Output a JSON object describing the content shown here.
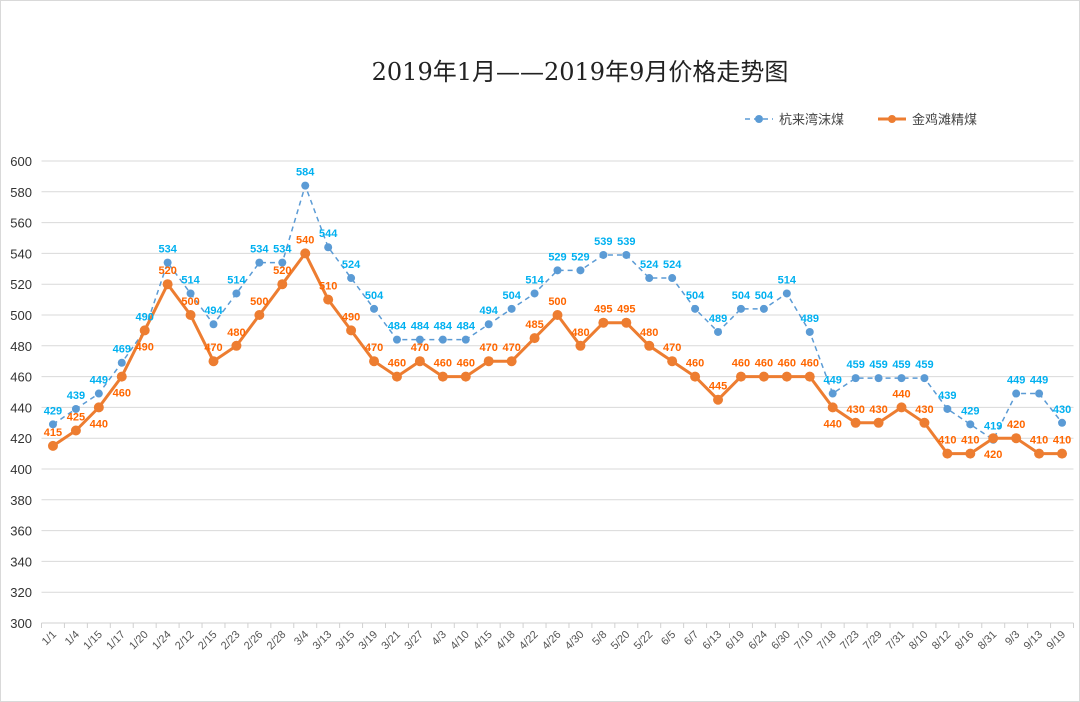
{
  "chart_data": {
    "type": "line",
    "title": "2019年1月——2019年9月价格走势图",
    "xlabel": "",
    "ylabel": "",
    "ylim": [
      300,
      600
    ],
    "yticks": [
      300,
      320,
      340,
      360,
      380,
      400,
      420,
      440,
      460,
      480,
      500,
      520,
      540,
      560,
      580,
      600
    ],
    "grid": true,
    "legend": "top-right",
    "categories": [
      "1/1",
      "1/4",
      "1/15",
      "1/17",
      "1/20",
      "1/24",
      "2/12",
      "2/15",
      "2/23",
      "2/26",
      "2/28",
      "3/4",
      "3/13",
      "3/15",
      "3/19",
      "3/21",
      "3/27",
      "4/3",
      "4/10",
      "4/15",
      "4/18",
      "4/22",
      "4/26",
      "4/30",
      "5/8",
      "5/20",
      "5/22",
      "6/5",
      "6/7",
      "6/13",
      "6/19",
      "6/24",
      "6/30",
      "7/10",
      "7/18",
      "7/23",
      "7/29",
      "7/31",
      "8/10",
      "8/12",
      "8/16",
      "8/31",
      "9/3",
      "9/13",
      "9/19"
    ],
    "series": [
      {
        "name": "杭来湾沫煤",
        "color": "#5b9bd5",
        "label_color": "#00b0f0",
        "style": "dashed",
        "values": [
          429,
          439,
          449,
          469,
          490,
          534,
          514,
          494,
          514,
          534,
          534,
          584,
          544,
          524,
          504,
          484,
          484,
          484,
          484,
          494,
          504,
          514,
          529,
          529,
          539,
          539,
          524,
          524,
          504,
          489,
          504,
          504,
          514,
          489,
          449,
          459,
          459,
          459,
          459,
          439,
          429,
          419,
          449,
          449,
          430
        ]
      },
      {
        "name": "金鸡滩精煤",
        "color": "#ed7d31",
        "label_color": "#ff6600",
        "style": "solid",
        "values": [
          415,
          425,
          440,
          460,
          490,
          520,
          500,
          470,
          480,
          500,
          520,
          540,
          510,
          490,
          470,
          460,
          470,
          460,
          460,
          470,
          470,
          485,
          500,
          480,
          495,
          495,
          480,
          470,
          460,
          445,
          460,
          460,
          460,
          460,
          440,
          430,
          430,
          440,
          430,
          410,
          410,
          420,
          420,
          410,
          410
        ]
      }
    ]
  }
}
